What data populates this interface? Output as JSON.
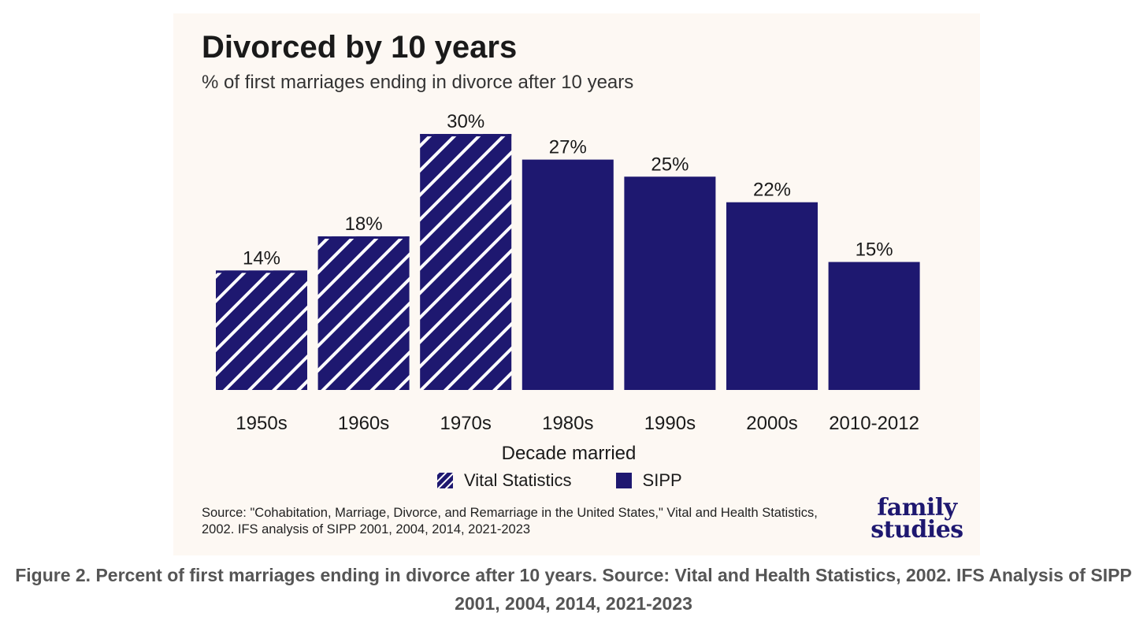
{
  "chart_data": {
    "type": "bar",
    "title": "Divorced by 10 years",
    "subtitle": "% of first marriages ending in divorce after 10 years",
    "xlabel": "Decade married",
    "ylabel": "",
    "categories": [
      "1950s",
      "1960s",
      "1970s",
      "1980s",
      "1990s",
      "2000s",
      "2010-2012"
    ],
    "values": [
      14,
      18,
      30,
      27,
      25,
      22,
      15
    ],
    "value_labels": [
      "14%",
      "18%",
      "30%",
      "27%",
      "25%",
      "22%",
      "15%"
    ],
    "bar_source": [
      "Vital Statistics",
      "Vital Statistics",
      "Vital Statistics",
      "SIPP",
      "SIPP",
      "SIPP",
      "SIPP"
    ],
    "series": [
      {
        "name": "Vital Statistics",
        "pattern": "hatched",
        "color": "#1e1870"
      },
      {
        "name": "SIPP",
        "pattern": "solid",
        "color": "#1e1870"
      }
    ],
    "ylim": [
      0,
      30
    ],
    "grid": false,
    "legend_position": "bottom"
  },
  "legend": {
    "vital_label": "Vital Statistics",
    "sipp_label": "SIPP"
  },
  "source": "Source: \"Cohabitation, Marriage, Divorce, and Remarriage in the United States,\" Vital and Health Statistics, 2002. IFS analysis of SIPP 2001, 2004, 2014, 2021-2023",
  "logo": {
    "line1": "family",
    "line2": "studies"
  },
  "caption": "Figure 2. Percent of first marriages ending in divorce after 10 years. Source: Vital and Health Statistics, 2002. IFS Analysis of SIPP 2001, 2004, 2014, 2021-2023",
  "colors": {
    "bar": "#1e1870",
    "background": "#fdf8f3",
    "caption": "#555555"
  }
}
